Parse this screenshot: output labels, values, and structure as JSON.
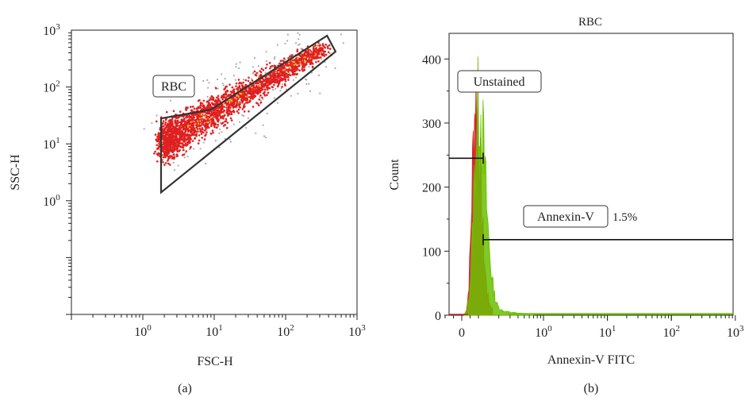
{
  "chart_data": [
    {
      "type": "scatter",
      "panel_label": "(a)",
      "title": "",
      "xlabel": "FSC-H",
      "ylabel": "SSC-H",
      "xscale": "log",
      "yscale": "log",
      "xlim": [
        0.1,
        1000
      ],
      "ylim": [
        0.01,
        1000
      ],
      "x_ticks": [
        {
          "value": 1,
          "base": "10",
          "exp": "0"
        },
        {
          "value": 10,
          "base": "10",
          "exp": "1"
        },
        {
          "value": 100,
          "base": "10",
          "exp": "2"
        },
        {
          "value": 1000,
          "base": "10",
          "exp": "3"
        }
      ],
      "y_ticks": [
        {
          "value": 1,
          "base": "10",
          "exp": "0"
        },
        {
          "value": 10,
          "base": "10",
          "exp": "1"
        },
        {
          "value": 100,
          "base": "10",
          "exp": "2"
        },
        {
          "value": 1000,
          "base": "10",
          "exp": "3"
        }
      ],
      "gate": {
        "name": "RBC",
        "polygon": [
          [
            1.8,
            28
          ],
          [
            1.8,
            1.4
          ],
          [
            500,
            420
          ],
          [
            380,
            800
          ],
          [
            9,
            40
          ],
          [
            1.8,
            28
          ]
        ]
      },
      "population": {
        "color_core": "#e02020",
        "color_outer": "#aaaaaa",
        "color_hot": "#f0c020"
      }
    },
    {
      "type": "histogram",
      "panel_label": "(b)",
      "title": "RBC",
      "xlabel": "Annexin-V FITC",
      "ylabel": "Count",
      "xscale": "biexponential",
      "ylim": [
        0,
        440
      ],
      "y_ticks": [
        0,
        100,
        200,
        300,
        400
      ],
      "x_ticks": [
        {
          "value": 0,
          "base": "0",
          "exp": ""
        },
        {
          "value": 1,
          "base": "10",
          "exp": "0"
        },
        {
          "value": 10,
          "base": "10",
          "exp": "1"
        },
        {
          "value": 100,
          "base": "10",
          "exp": "2"
        },
        {
          "value": 1000,
          "base": "10",
          "exp": "3"
        }
      ],
      "series": [
        {
          "name": "Unstained",
          "color": "#d62020",
          "peak_count": 415
        },
        {
          "name": "Annexin-V",
          "color": "#6ac000",
          "peak_count": 410
        }
      ],
      "gates": [
        {
          "label": "",
          "count_level": 245
        },
        {
          "label": "1.5%",
          "count_level": 118
        }
      ]
    }
  ]
}
